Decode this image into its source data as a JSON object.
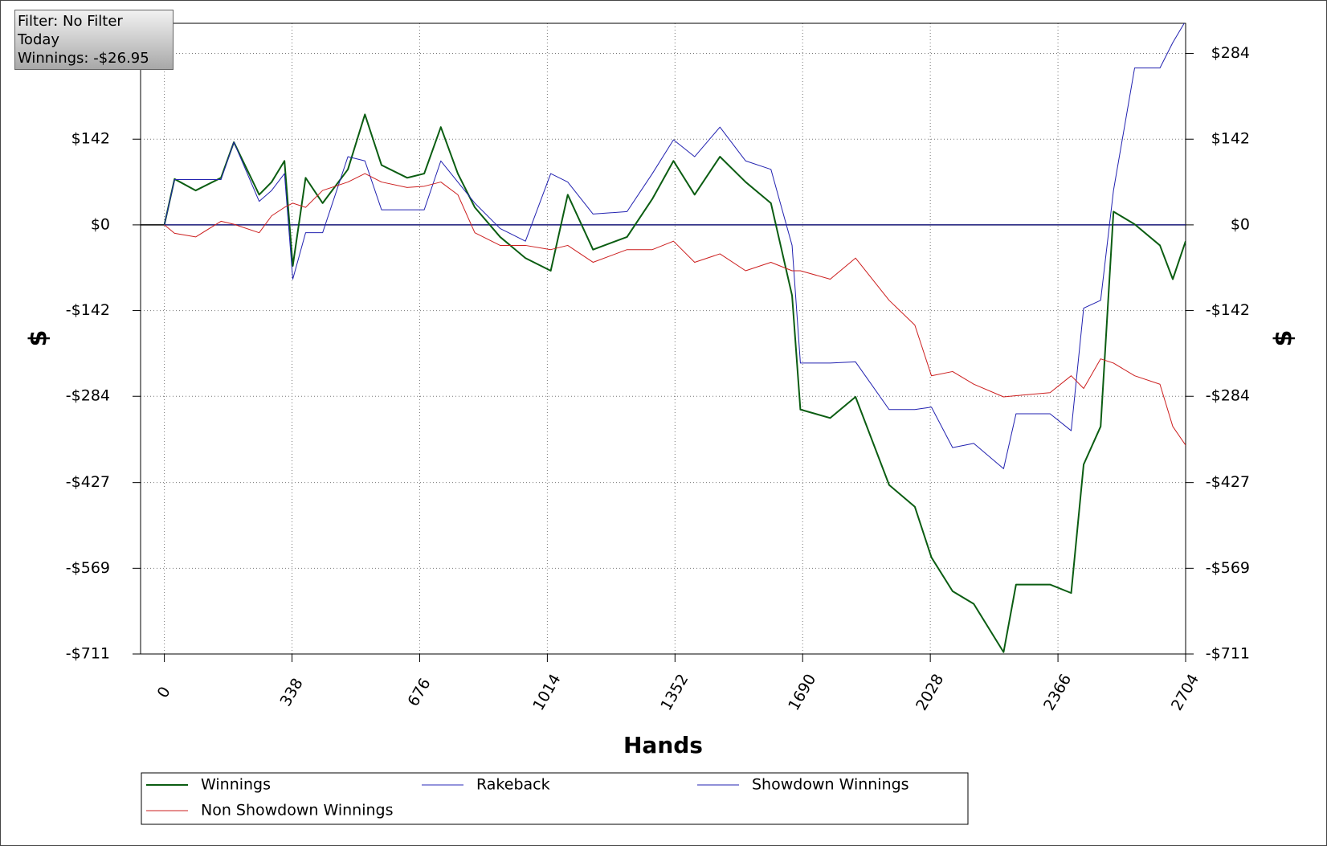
{
  "chart_data": {
    "type": "line",
    "annotations": [
      "Filter: No Filter",
      "Today",
      "Winnings: -$26.95"
    ],
    "xlabel": "Hands",
    "ylabel": "$",
    "y2label": "$",
    "x": [
      0,
      27,
      83,
      150,
      184,
      251,
      284,
      318,
      340,
      374,
      419,
      486,
      531,
      575,
      643,
      688,
      732,
      777,
      822,
      889,
      956,
      1023,
      1068,
      1135,
      1225,
      1292,
      1348,
      1404,
      1471,
      1539,
      1606,
      1662,
      1684,
      1763,
      1830,
      1919,
      1987,
      2031,
      2087,
      2143,
      2222,
      2255,
      2345,
      2401,
      2434,
      2479,
      2513,
      2569,
      2636,
      2670,
      2704
    ],
    "series": [
      {
        "name": "Winnings",
        "color": "#0b5d12",
        "width": 2,
        "values": [
          0,
          76,
          57,
          78,
          137,
          50,
          71,
          106,
          -68,
          78,
          36,
          92,
          183,
          99,
          78,
          85,
          162,
          85,
          29,
          -20,
          -55,
          -76,
          50,
          -41,
          -20,
          43,
          106,
          50,
          113,
          71,
          36,
          -117,
          -306,
          -320,
          -285,
          -431,
          -467,
          -551,
          -607,
          -628,
          -708,
          -596,
          -596,
          -610,
          -397,
          -334,
          22,
          1,
          -34,
          -90,
          -27
        ]
      },
      {
        "name": "Rakeback",
        "color": "#2a2ab8",
        "width": 1,
        "values": [
          0,
          0,
          0,
          0,
          0,
          0,
          0,
          0,
          0,
          0,
          0,
          0,
          0,
          0,
          0,
          0,
          0,
          0,
          0,
          0,
          0,
          0,
          0,
          0,
          0,
          0,
          0,
          0,
          0,
          0,
          0,
          0,
          0,
          0,
          0,
          0,
          0,
          0,
          0,
          0,
          0,
          0,
          0,
          0,
          0,
          0,
          0,
          0,
          0,
          0,
          0
        ]
      },
      {
        "name": "Showdown Winnings",
        "color": "#2222b0",
        "width": 1,
        "values": [
          0,
          75,
          75,
          75,
          137,
          39,
          57,
          85,
          -90,
          -13,
          -13,
          113,
          106,
          25,
          25,
          25,
          106,
          71,
          36,
          -6,
          -27,
          85,
          71,
          18,
          22,
          85,
          141,
          113,
          162,
          106,
          92,
          -34,
          -229,
          -229,
          -227,
          -306,
          -306,
          -302,
          -369,
          -362,
          -404,
          -313,
          -313,
          -341,
          -138,
          -125,
          57,
          260,
          260,
          302,
          338
        ]
      },
      {
        "name": "Non Showdown Winnings",
        "color": "#cc1f1f",
        "width": 1,
        "values": [
          0,
          -14,
          -20,
          6,
          1,
          -13,
          15,
          29,
          36,
          29,
          57,
          71,
          85,
          71,
          62,
          64,
          71,
          50,
          -13,
          -34,
          -34,
          -41,
          -34,
          -62,
          -41,
          -41,
          -27,
          -62,
          -48,
          -76,
          -62,
          -76,
          -76,
          -90,
          -55,
          -125,
          -166,
          -250,
          -243,
          -264,
          -285,
          -283,
          -278,
          -250,
          -271,
          -222,
          -229,
          -250,
          -264,
          -334,
          -365
        ]
      }
    ],
    "xlim": [
      -63,
      2704
    ],
    "xticks": [
      0,
      338,
      676,
      1014,
      1352,
      1690,
      2028,
      2366,
      2704
    ],
    "ylim": [
      -711,
      334
    ],
    "yticks": [
      {
        "value": -711,
        "label": "-$711"
      },
      {
        "value": -569,
        "label": "-$569"
      },
      {
        "value": -427,
        "label": "-$427"
      },
      {
        "value": -284,
        "label": "-$284"
      },
      {
        "value": -142,
        "label": "-$142"
      },
      {
        "value": 0,
        "label": "$0"
      },
      {
        "value": 142,
        "label": "$142"
      },
      {
        "value": 284,
        "label": "$284"
      }
    ],
    "y2lim": [
      -711,
      334
    ],
    "y2ticks": [
      {
        "value": -711,
        "label": "-$711"
      },
      {
        "value": -569,
        "label": "-$569"
      },
      {
        "value": -427,
        "label": "-$427"
      },
      {
        "value": -284,
        "label": "-$284"
      },
      {
        "value": -142,
        "label": "-$142"
      },
      {
        "value": 0,
        "label": "$0"
      },
      {
        "value": 142,
        "label": "$142"
      },
      {
        "value": 284,
        "label": "$284"
      }
    ],
    "grid": true,
    "legend": "bottom"
  }
}
